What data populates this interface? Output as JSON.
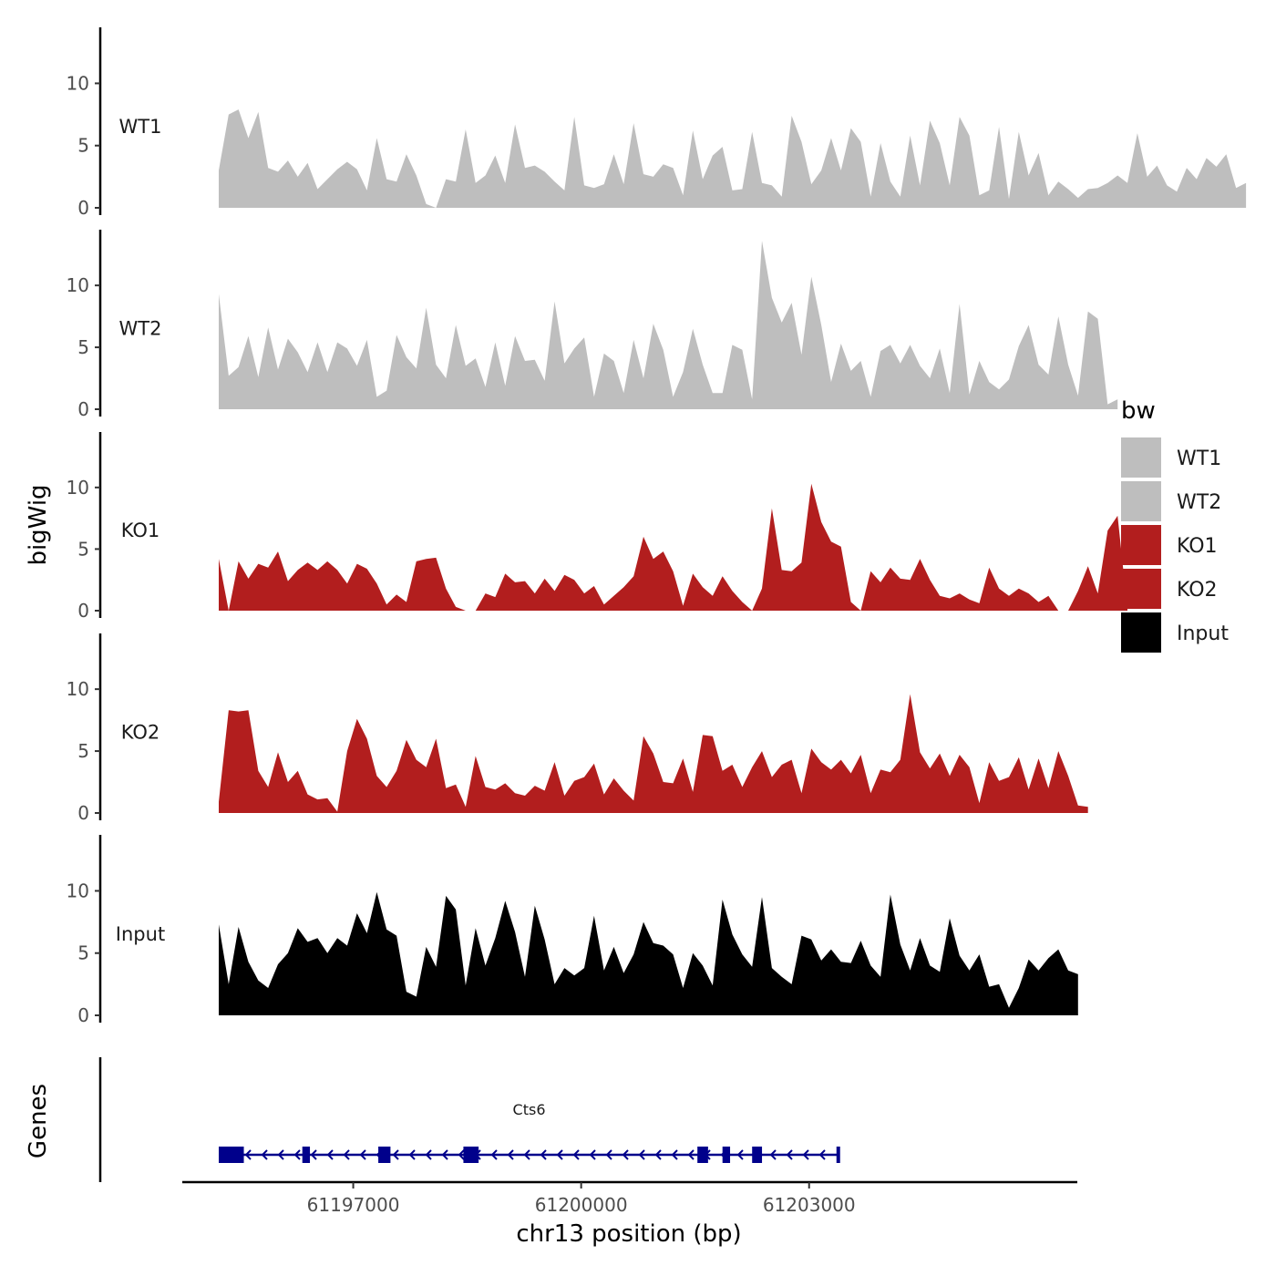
{
  "chart_data": {
    "type": "area",
    "title": "",
    "ylabel": "bigWig",
    "xlabel": "chr13 position (bp)",
    "genes_label": "Genes",
    "xlim": [
      61194750,
      61206530
    ],
    "ylim": [
      0,
      14.5
    ],
    "y_ticks": [
      0,
      5,
      10
    ],
    "y_tick_labels": [
      "0",
      "5",
      "10"
    ],
    "x_ticks": [
      61197000,
      61200000,
      61203000
    ],
    "x_tick_labels": [
      "61197000",
      "61200000",
      "61203000"
    ],
    "x_step_bp": 130,
    "tracks": [
      {
        "name": "WT1",
        "color": "#BEBEBE",
        "x_start": 61195230,
        "values": [
          3,
          7.5,
          7.9,
          5.6,
          7.7,
          3.2,
          2.9,
          3.8,
          2.5,
          3.6,
          1.5,
          2.3,
          3.1,
          3.7,
          3.1,
          1.4,
          5.6,
          2.3,
          2.1,
          4.3,
          2.6,
          0.3,
          0,
          2.3,
          2.1,
          6.3,
          2.0,
          2.6,
          4.2,
          2.0,
          6.7,
          3.2,
          3.4,
          2.9,
          2.1,
          1.4,
          7.3,
          1.8,
          1.6,
          1.9,
          4.3,
          1.9,
          6.8,
          2.7,
          2.5,
          3.5,
          3.2,
          1.0,
          6.2,
          2.3,
          4.2,
          4.9,
          1.4,
          1.5,
          6.1,
          2.0,
          1.8,
          0.9,
          7.4,
          5.3,
          1.9,
          3.0,
          5.6,
          3.0,
          6.4,
          5.3,
          0.9,
          5.2,
          2.1,
          0.9,
          5.8,
          1.8,
          7.0,
          5.2,
          1.8,
          7.3,
          5.8,
          1.0,
          1.4,
          6.5,
          0.7,
          6.1,
          2.6,
          4.4,
          1.0,
          2.1,
          1.5,
          0.8,
          1.5,
          1.6,
          2.0,
          2.6,
          2.0,
          6.0,
          2.5,
          3.4,
          1.8,
          1.3,
          3.2,
          2.3,
          4.0,
          3.3,
          4.3,
          1.6,
          2.0
        ]
      },
      {
        "name": "WT2",
        "color": "#BEBEBE",
        "x_start": 61195230,
        "values": [
          9.3,
          2.7,
          3.4,
          5.9,
          2.6,
          6.6,
          3.2,
          5.7,
          4.6,
          3.0,
          5.4,
          3.0,
          5.4,
          4.9,
          3.5,
          5.6,
          1.0,
          1.5,
          6.0,
          4.2,
          3.3,
          8.2,
          3.6,
          2.5,
          6.8,
          3.5,
          4.1,
          1.8,
          5.4,
          1.9,
          5.9,
          3.9,
          4.0,
          2.3,
          8.7,
          3.7,
          4.9,
          5.8,
          1.0,
          4.5,
          3.9,
          1.3,
          5.6,
          2.5,
          6.9,
          4.8,
          1.0,
          3.0,
          6.5,
          3.6,
          1.3,
          1.3,
          5.2,
          4.8,
          0.8,
          13.6,
          9.0,
          7.0,
          8.6,
          4.4,
          10.7,
          6.8,
          2.2,
          5.3,
          3.1,
          3.9,
          1.0,
          4.7,
          5.2,
          3.7,
          5.2,
          3.5,
          2.5,
          4.9,
          1.3,
          8.5,
          1.2,
          3.9,
          2.2,
          1.6,
          2.4,
          5.1,
          6.8,
          3.6,
          2.8,
          7.5,
          3.6,
          1.1,
          7.9,
          7.3,
          0.4,
          0.8
        ]
      },
      {
        "name": "KO1",
        "color": "#B21E1E",
        "x_start": 61195230,
        "values": [
          4.2,
          0,
          4.0,
          2.6,
          3.8,
          3.5,
          4.8,
          2.4,
          3.3,
          3.9,
          3.3,
          4.0,
          3.3,
          2.2,
          3.8,
          3.4,
          2.2,
          0.5,
          1.3,
          0.7,
          4.0,
          4.2,
          4.3,
          1.8,
          0.3,
          0,
          0,
          1.4,
          1.1,
          3.0,
          2.3,
          2.4,
          1.4,
          2.6,
          1.6,
          2.9,
          2.5,
          1.4,
          2.0,
          0.5,
          1.2,
          1.9,
          2.8,
          6.0,
          4.2,
          4.8,
          3.2,
          0.4,
          3.0,
          1.9,
          1.2,
          2.8,
          1.6,
          0.7,
          0,
          1.8,
          8.3,
          3.3,
          3.2,
          3.9,
          10.3,
          7.2,
          5.6,
          5.2,
          0.7,
          0,
          3.2,
          2.3,
          3.5,
          2.6,
          2.5,
          4.2,
          2.5,
          1.2,
          1.0,
          1.4,
          0.9,
          0.6,
          3.5,
          1.8,
          1.2,
          1.8,
          1.4,
          0.7,
          1.2,
          0,
          0,
          1.6,
          3.6,
          1.4,
          6.5,
          7.7,
          0.1
        ]
      },
      {
        "name": "KO2",
        "color": "#B21E1E",
        "x_start": 61195230,
        "values": [
          0.9,
          8.3,
          8.2,
          8.3,
          3.4,
          2.1,
          4.9,
          2.5,
          3.4,
          1.5,
          1.1,
          1.2,
          0.1,
          5.0,
          7.6,
          6.0,
          3.0,
          2.1,
          3.4,
          5.9,
          4.3,
          3.7,
          6.0,
          2.0,
          2.3,
          0.5,
          4.6,
          2.1,
          1.9,
          2.4,
          1.6,
          1.4,
          2.2,
          1.8,
          4.1,
          1.4,
          2.6,
          2.9,
          4.0,
          1.5,
          2.8,
          1.8,
          1.0,
          6.2,
          4.8,
          2.5,
          2.4,
          4.4,
          1.7,
          6.3,
          6.2,
          3.4,
          3.9,
          2.1,
          3.7,
          5.0,
          2.9,
          3.9,
          4.3,
          1.6,
          5.2,
          4.1,
          3.5,
          4.3,
          3.2,
          4.7,
          1.6,
          3.5,
          3.3,
          4.3,
          9.6,
          4.9,
          3.6,
          4.8,
          3.0,
          4.7,
          3.7,
          0.8,
          4.1,
          2.6,
          2.9,
          4.5,
          1.9,
          4.4,
          2.0,
          5.0,
          3.0,
          0.6,
          0.5
        ]
      },
      {
        "name": "Input",
        "color": "#000000",
        "x_start": 61195230,
        "values": [
          7.3,
          2.5,
          7.1,
          4.3,
          2.8,
          2.2,
          4.1,
          5.0,
          7.0,
          5.9,
          6.2,
          5.0,
          6.2,
          5.6,
          8.2,
          6.6,
          9.9,
          6.9,
          6.4,
          1.9,
          1.5,
          5.5,
          3.9,
          9.6,
          8.5,
          2.4,
          7.0,
          4.0,
          6.2,
          9.2,
          6.7,
          3.1,
          8.8,
          6.1,
          2.5,
          3.8,
          3.2,
          3.8,
          8.0,
          3.6,
          5.5,
          3.4,
          4.9,
          7.5,
          5.8,
          5.6,
          4.9,
          2.2,
          5.0,
          4.0,
          2.4,
          9.3,
          6.5,
          4.9,
          3.9,
          9.5,
          3.8,
          3.1,
          2.5,
          6.4,
          6.1,
          4.4,
          5.3,
          4.3,
          4.2,
          6.0,
          4.0,
          3.1,
          9.7,
          5.7,
          3.6,
          6.2,
          4.0,
          3.5,
          7.8,
          4.8,
          3.6,
          4.9,
          2.3,
          2.5,
          0.6,
          2.2,
          4.5,
          3.6,
          4.6,
          5.3,
          3.6,
          3.3
        ]
      }
    ],
    "genes": [
      {
        "name": "Cts6",
        "start": 61195230,
        "end": 61203400,
        "strand": "-",
        "color": "#00008B",
        "exons": [
          [
            61195230,
            61195560
          ],
          [
            61196330,
            61196430
          ],
          [
            61197330,
            61197490
          ],
          [
            61198450,
            61198650
          ],
          [
            61201530,
            61201670
          ],
          [
            61201860,
            61201960
          ],
          [
            61202250,
            61202380
          ],
          [
            61203360,
            61203400
          ]
        ]
      }
    ],
    "legend": {
      "title": "bw",
      "position": "right",
      "entries": [
        {
          "label": "WT1",
          "color": "#BEBEBE"
        },
        {
          "label": "WT2",
          "color": "#BEBEBE"
        },
        {
          "label": "KO1",
          "color": "#B21E1E"
        },
        {
          "label": "KO2",
          "color": "#B21E1E"
        },
        {
          "label": "Input",
          "color": "#000000"
        }
      ]
    }
  }
}
